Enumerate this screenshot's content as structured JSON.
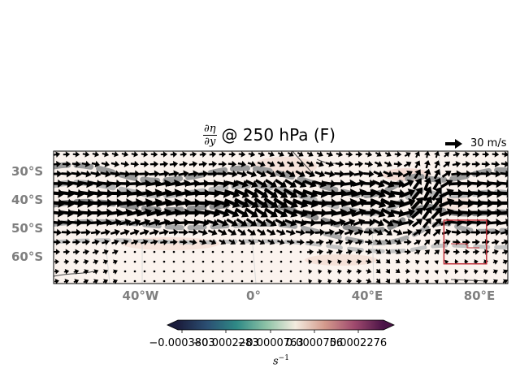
{
  "title": {
    "numerator": "∂η",
    "denominator": "∂y",
    "text": "@ 250 hPa (F)"
  },
  "reference_vector": {
    "label": "30 m/s"
  },
  "lat_ticks": [
    "30°S",
    "40°S",
    "50°S",
    "60°S"
  ],
  "lon_ticks": [
    "40°W",
    "0°",
    "40°E",
    "80°E"
  ],
  "colorbar": {
    "tick_labels": [
      "−0.0003803",
      "−0.0002283",
      "−0.0000763",
      "0.0000756",
      "0.0002276"
    ],
    "unit_base": "s",
    "unit_exp": "−1",
    "colors": [
      "#1b1d3c",
      "#2b4f73",
      "#2f8a86",
      "#8cc2a6",
      "#f3ecdf",
      "#d49a8c",
      "#a04a6e",
      "#4a1347"
    ]
  },
  "map": {
    "lon_range": [
      -71,
      89
    ],
    "lat_range": [
      -71,
      -24
    ],
    "highlight_box": {
      "lon": [
        66.5,
        81.5
      ],
      "lat": [
        -64,
        -48.5
      ]
    },
    "highlight_color": "#c0303a"
  }
}
